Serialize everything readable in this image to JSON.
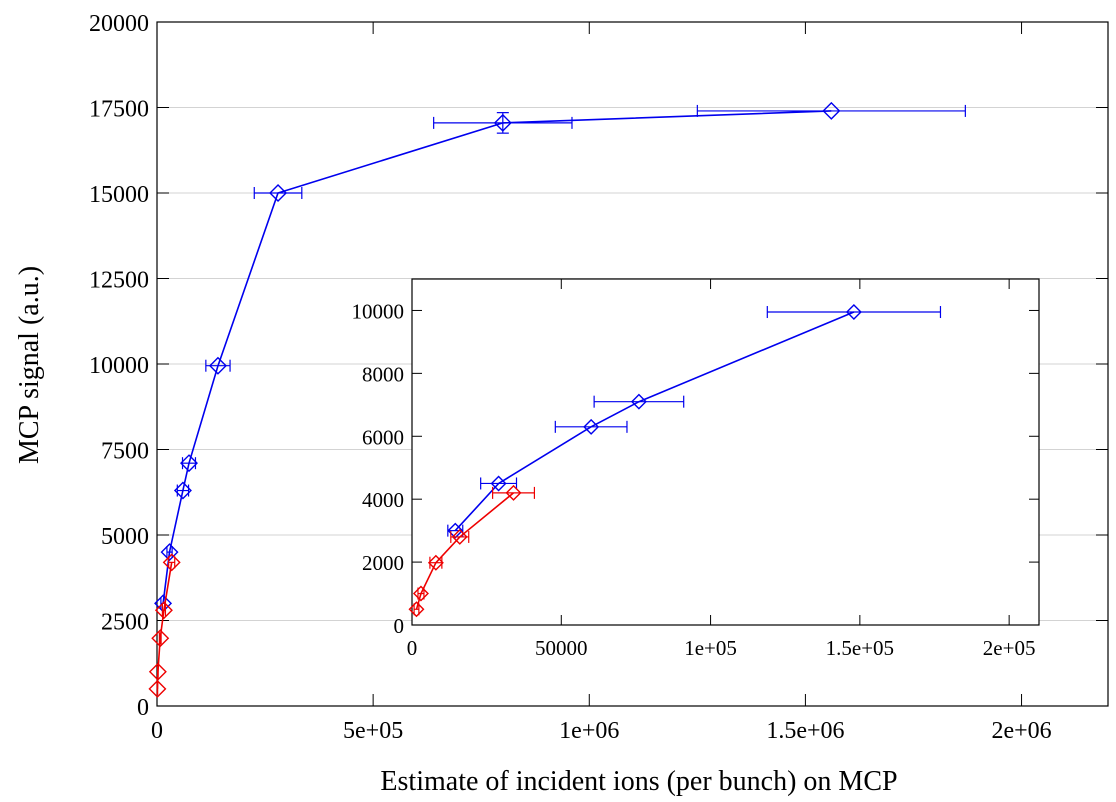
{
  "chart_data": [
    {
      "type": "line",
      "title": "",
      "xlabel": "Estimate of incident ions (per bunch) on MCP",
      "ylabel": "MCP signal (a.u.)",
      "xlim": [
        0,
        2200000
      ],
      "ylim": [
        0,
        20000
      ],
      "grid": "horizontal",
      "xticks": [
        0,
        500000,
        1000000,
        1500000,
        2000000
      ],
      "xtick_labels": [
        "0",
        "5e+05",
        "1e+06",
        "1.5e+06",
        "2e+06"
      ],
      "yticks": [
        0,
        2500,
        5000,
        7500,
        10000,
        12500,
        15000,
        17500,
        20000
      ],
      "ytick_labels": [
        "0",
        "2500",
        "5000",
        "7500",
        "10000",
        "12500",
        "15000",
        "17500",
        "20000"
      ],
      "series": [
        {
          "color": "#0000ee",
          "marker": "diamond",
          "points": [
            {
              "x": 14000,
              "y": 3000,
              "xerr": 5000,
              "yerr": 0
            },
            {
              "x": 29000,
              "y": 4500,
              "xerr": 6000,
              "yerr": 0
            },
            {
              "x": 60000,
              "y": 6300,
              "xerr": 13000,
              "yerr": 0
            },
            {
              "x": 74000,
              "y": 7100,
              "xerr": 15000,
              "yerr": 0
            },
            {
              "x": 141000,
              "y": 9950,
              "xerr": 28000,
              "yerr": 0
            },
            {
              "x": 280000,
              "y": 15000,
              "xerr": 55000,
              "yerr": 0
            },
            {
              "x": 800000,
              "y": 17050,
              "xerr": 160000,
              "yerr": 300
            },
            {
              "x": 1560000,
              "y": 17400,
              "xerr": 310000,
              "yerr": 0
            }
          ]
        },
        {
          "color": "#ee0000",
          "marker": "diamond",
          "points": [
            {
              "x": 1000,
              "y": 500,
              "xerr": 500,
              "yerr": 0
            },
            {
              "x": 2000,
              "y": 1000,
              "xerr": 600,
              "yerr": 0
            },
            {
              "x": 7500,
              "y": 1980,
              "xerr": 2000,
              "yerr": 0
            },
            {
              "x": 16000,
              "y": 2800,
              "xerr": 3500,
              "yerr": 0
            },
            {
              "x": 34000,
              "y": 4200,
              "xerr": 7000,
              "yerr": 0
            }
          ]
        }
      ]
    },
    {
      "type": "line",
      "title": "",
      "xlabel": "",
      "ylabel": "",
      "xlim": [
        0,
        210000
      ],
      "ylim": [
        0,
        11000
      ],
      "xticks": [
        0,
        50000,
        100000,
        150000,
        200000
      ],
      "xtick_labels": [
        "0",
        "50000",
        "1e+05",
        "1.5e+05",
        "2e+05"
      ],
      "yticks": [
        0,
        2000,
        4000,
        6000,
        8000,
        10000
      ],
      "ytick_labels": [
        "0",
        "2000",
        "4000",
        "6000",
        "8000",
        "10000"
      ],
      "series": [
        {
          "color": "#0000ee",
          "marker": "diamond",
          "points": [
            {
              "x": 14500,
              "y": 3000,
              "xerr": 2500
            },
            {
              "x": 29000,
              "y": 4500,
              "xerr": 6000
            },
            {
              "x": 60000,
              "y": 6300,
              "xerr": 12000
            },
            {
              "x": 76000,
              "y": 7100,
              "xerr": 15000
            },
            {
              "x": 148000,
              "y": 9950,
              "xerr": 29000
            }
          ]
        },
        {
          "color": "#ee0000",
          "marker": "diamond",
          "points": [
            {
              "x": 1500,
              "y": 500,
              "xerr": 800
            },
            {
              "x": 3000,
              "y": 1000,
              "xerr": 1000
            },
            {
              "x": 8000,
              "y": 1980,
              "xerr": 2000
            },
            {
              "x": 16000,
              "y": 2800,
              "xerr": 3000
            },
            {
              "x": 34000,
              "y": 4200,
              "xerr": 7000
            }
          ]
        }
      ]
    }
  ]
}
